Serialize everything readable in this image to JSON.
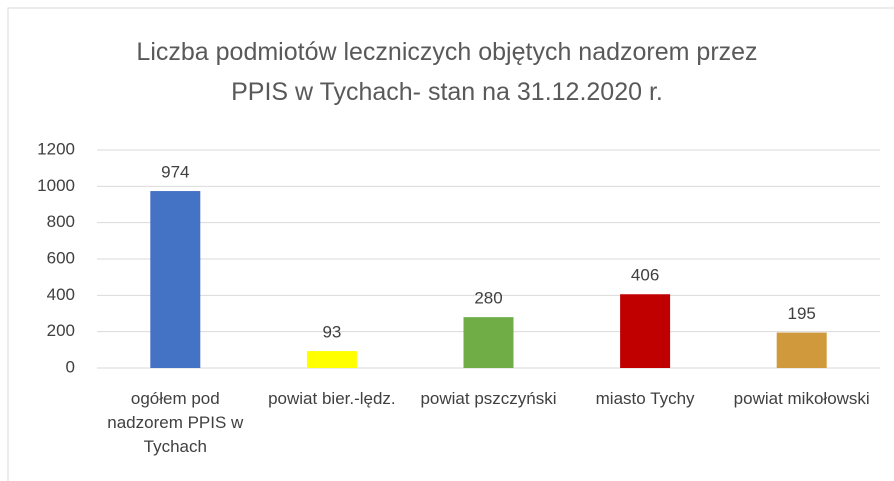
{
  "chart_data": {
    "type": "bar",
    "title": "Liczba podmiotów leczniczych objętych nadzorem przez PPIS w Tychach- stan na 31.12.2020 r.",
    "categories": [
      "ogółem pod nadzorem PPIS w Tychach",
      "powiat bier.-lędz.",
      "powiat pszczyński",
      "miasto Tychy",
      "powiat mikołowski"
    ],
    "values": [
      974,
      93,
      280,
      406,
      195
    ],
    "colors": [
      "#4472c4",
      "#ffff00",
      "#70ad47",
      "#c00000",
      "#d09a3c"
    ],
    "ylim": [
      0,
      1200
    ],
    "yticks": [
      0,
      200,
      400,
      600,
      800,
      1000,
      1200
    ],
    "grid": true,
    "data_labels": true
  }
}
